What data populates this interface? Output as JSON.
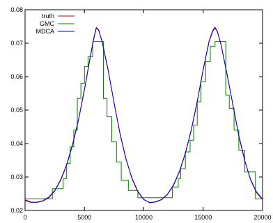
{
  "chart_data": {
    "type": "line",
    "title": "",
    "xlabel": "",
    "ylabel": "",
    "xlim": [
      0,
      20000
    ],
    "ylim": [
      0.02,
      0.08
    ],
    "grid": false,
    "legend_position": "top-left",
    "x_ticks": [
      0,
      5000,
      10000,
      15000,
      20000
    ],
    "x_tick_labels": [
      "0",
      "5000",
      "10000",
      "15000",
      "20000"
    ],
    "y_ticks": [
      0.02,
      0.03,
      0.04,
      0.05,
      0.06,
      0.07,
      0.08
    ],
    "y_tick_labels": [
      "0.02",
      "0.03",
      "0.04",
      "0.05",
      "0.06",
      "0.07",
      "0.08"
    ],
    "series": [
      {
        "name": "truth",
        "color": "#cc0000",
        "style": "line",
        "x": [
          0,
          500,
          1000,
          1500,
          2000,
          2500,
          3000,
          3500,
          4000,
          4500,
          5000,
          5500,
          5800,
          6000,
          6200,
          6500,
          7000,
          7500,
          8000,
          8500,
          9000,
          9500,
          10000,
          10500,
          11000,
          11500,
          12000,
          12500,
          13000,
          13500,
          14000,
          14500,
          15000,
          15500,
          15800,
          16000,
          16200,
          16500,
          17000,
          17500,
          18000,
          18500,
          19000,
          19500,
          20000
        ],
        "y": [
          0.0232,
          0.0225,
          0.0224,
          0.0228,
          0.0238,
          0.0258,
          0.029,
          0.0335,
          0.0395,
          0.047,
          0.056,
          0.066,
          0.0715,
          0.0745,
          0.0738,
          0.0705,
          0.062,
          0.052,
          0.043,
          0.0355,
          0.0295,
          0.0255,
          0.0232,
          0.0224,
          0.0225,
          0.0232,
          0.0248,
          0.0275,
          0.0315,
          0.037,
          0.044,
          0.0525,
          0.062,
          0.0705,
          0.0735,
          0.0745,
          0.0735,
          0.0695,
          0.061,
          0.0515,
          0.0425,
          0.035,
          0.029,
          0.0253,
          0.0232
        ]
      },
      {
        "name": "GMC",
        "color": "#008000",
        "style": "step",
        "x": [
          0,
          2300,
          3200,
          3500,
          3800,
          4100,
          4400,
          4700,
          5000,
          5300,
          5700,
          6600,
          6900,
          7300,
          7700,
          8100,
          8700,
          9500,
          11000,
          12400,
          12900,
          13100,
          13500,
          13900,
          14200,
          14500,
          14800,
          15200,
          15600,
          16000,
          16900,
          17200,
          17600,
          18000,
          18500,
          19400,
          20000
        ],
        "y": [
          0.0235,
          0.0265,
          0.0295,
          0.034,
          0.039,
          0.044,
          0.0535,
          0.058,
          0.063,
          0.066,
          0.0705,
          0.0535,
          0.048,
          0.0405,
          0.0345,
          0.029,
          0.026,
          0.0238,
          0.0238,
          0.027,
          0.0295,
          0.0325,
          0.0375,
          0.041,
          0.0455,
          0.0525,
          0.0585,
          0.0645,
          0.069,
          0.0705,
          0.0545,
          0.0505,
          0.044,
          0.038,
          0.0315,
          0.0235,
          0.0235
        ]
      },
      {
        "name": "MDCA",
        "color": "#0000cc",
        "style": "line",
        "x": [
          0,
          500,
          1000,
          1500,
          2000,
          2500,
          3000,
          3500,
          4000,
          4500,
          5000,
          5500,
          5800,
          6000,
          6200,
          6500,
          7000,
          7500,
          8000,
          8500,
          9000,
          9500,
          10000,
          10500,
          11000,
          11500,
          12000,
          12500,
          13000,
          13500,
          14000,
          14500,
          15000,
          15500,
          15800,
          16000,
          16200,
          16500,
          17000,
          17500,
          18000,
          18500,
          19000,
          19500,
          20000
        ],
        "y": [
          0.023,
          0.0224,
          0.0225,
          0.0229,
          0.024,
          0.026,
          0.0292,
          0.0337,
          0.0398,
          0.0472,
          0.0562,
          0.0662,
          0.0718,
          0.0747,
          0.074,
          0.0702,
          0.0618,
          0.0522,
          0.0428,
          0.0353,
          0.0297,
          0.0257,
          0.0233,
          0.0223,
          0.0226,
          0.0233,
          0.0249,
          0.0277,
          0.0317,
          0.0372,
          0.0442,
          0.0527,
          0.0622,
          0.0707,
          0.0738,
          0.0748,
          0.0733,
          0.0697,
          0.0608,
          0.0517,
          0.0423,
          0.0348,
          0.0292,
          0.0255,
          0.0234
        ]
      }
    ]
  }
}
